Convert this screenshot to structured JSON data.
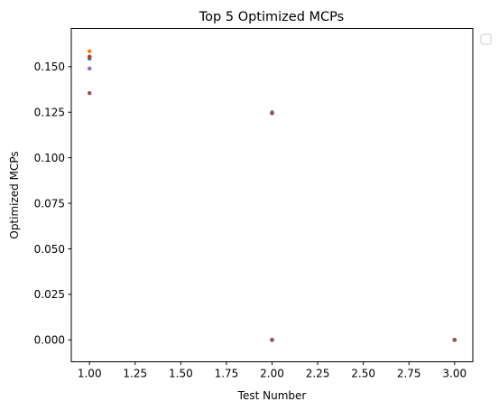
{
  "chart_data": {
    "type": "scatter",
    "title": "Top 5 Optimized MCPs",
    "xlabel": "Test Number",
    "ylabel": "Optimized MCPs",
    "xlim": [
      0.9,
      3.1
    ],
    "ylim": [
      -0.012,
      0.171
    ],
    "xticks": [
      "1.00",
      "1.25",
      "1.50",
      "1.75",
      "2.00",
      "2.25",
      "2.50",
      "2.75",
      "3.00"
    ],
    "xtick_values": [
      1.0,
      1.25,
      1.5,
      1.75,
      2.0,
      2.25,
      2.5,
      2.75,
      3.0
    ],
    "yticks": [
      "0.000",
      "0.025",
      "0.050",
      "0.075",
      "0.100",
      "0.125",
      "0.150"
    ],
    "ytick_values": [
      0.0,
      0.025,
      0.05,
      0.075,
      0.1,
      0.125,
      0.15
    ],
    "grid": false,
    "legend": {
      "placement": "outside-top-right",
      "entries": []
    },
    "series": [
      {
        "color": "#1f77b4",
        "points": [
          [
            1,
            0.1545
          ],
          [
            2,
            0.1245
          ],
          [
            2,
            0.0
          ],
          [
            3,
            0.0
          ]
        ]
      },
      {
        "color": "#ff7f0e",
        "points": [
          [
            1,
            0.1585
          ],
          [
            2,
            0.1245
          ],
          [
            2,
            0.0
          ],
          [
            3,
            0.0
          ]
        ]
      },
      {
        "color": "#d62728",
        "points": [
          [
            1,
            0.1555
          ],
          [
            2,
            0.1245
          ],
          [
            2,
            0.0
          ],
          [
            3,
            0.0
          ]
        ]
      },
      {
        "color": "#9467bd",
        "points": [
          [
            1,
            0.149
          ],
          [
            2,
            0.125
          ],
          [
            2,
            0.0
          ],
          [
            3,
            0.0
          ]
        ]
      },
      {
        "color": "#8c564b",
        "points": [
          [
            1,
            0.1355
          ],
          [
            2,
            0.1245
          ],
          [
            2,
            0.0
          ],
          [
            3,
            0.0
          ]
        ]
      }
    ]
  }
}
